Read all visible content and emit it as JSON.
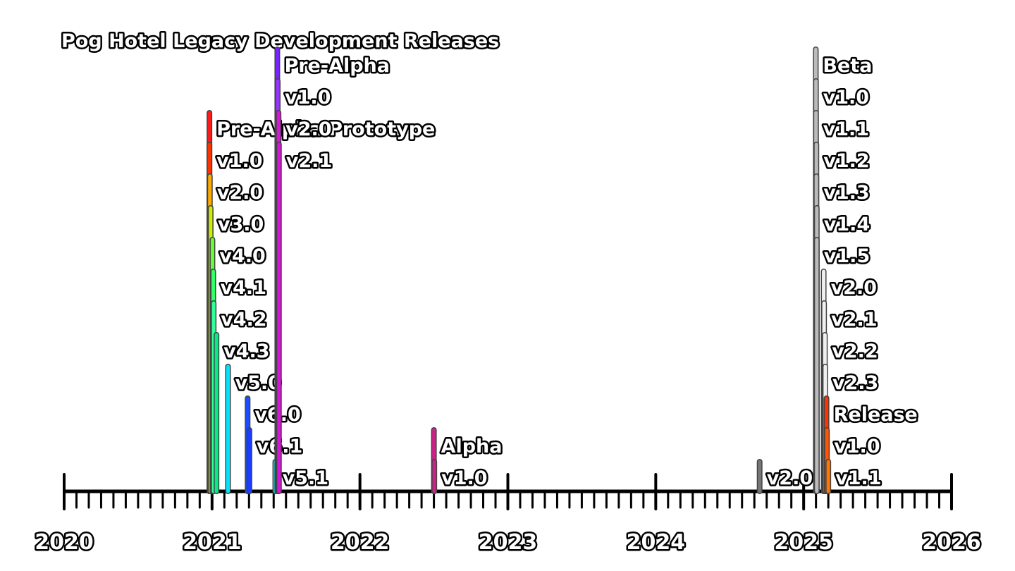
{
  "chart_data": {
    "type": "timeline",
    "title": "Pog Hotel Legacy Development Releases",
    "x_axis": {
      "range": [
        "2020-01",
        "2026-01"
      ],
      "tick_labels": [
        "2020",
        "2021",
        "2022",
        "2023",
        "2024",
        "2025",
        "2026"
      ],
      "minor_ticks": "monthly"
    },
    "events": [
      {
        "date": "2020-12-25",
        "label": "Pre-Alpha Prototype",
        "color": "#ff1a1a"
      },
      {
        "date": "2020-12-25",
        "label": "v1.0",
        "color": "#ff3300"
      },
      {
        "date": "2020-12-26",
        "label": "v2.0",
        "color": "#ffaa00"
      },
      {
        "date": "2020-12-28",
        "label": "v3.0",
        "color": "#ccee00"
      },
      {
        "date": "2021-01-02",
        "label": "v4.0",
        "color": "#66ff33"
      },
      {
        "date": "2021-01-04",
        "label": "v4.1",
        "color": "#33ff66"
      },
      {
        "date": "2021-01-05",
        "label": "v4.2",
        "color": "#33ff99"
      },
      {
        "date": "2021-01-12",
        "label": "v4.3",
        "color": "#00ee88"
      },
      {
        "date": "2021-02-10",
        "label": "v5.0",
        "color": "#00e5ff"
      },
      {
        "date": "2021-03-28",
        "label": "v6.0",
        "color": "#1a4dff"
      },
      {
        "date": "2021-04-02",
        "label": "v6.1",
        "color": "#1a3dff"
      },
      {
        "date": "2021-06-05",
        "label": "v5.1",
        "color": "#00e5ff"
      },
      {
        "date": "2021-06-10",
        "label": "Pre-Alpha",
        "color": "#7722ff"
      },
      {
        "date": "2021-06-11",
        "label": "v1.0",
        "color": "#9933ff"
      },
      {
        "date": "2021-06-13",
        "label": "v2.0",
        "color": "#dd11dd"
      },
      {
        "date": "2021-06-14",
        "label": "v2.1",
        "color": "#dd11dd"
      },
      {
        "date": "2022-07-01",
        "label": "Alpha",
        "color": "#cc2288"
      },
      {
        "date": "2022-07-02",
        "label": "v1.0",
        "color": "#cc2288"
      },
      {
        "date": "2024-09-14",
        "label": "v2.0",
        "color": "#777777"
      },
      {
        "date": "2025-01-31",
        "label": "Beta",
        "color": "#bbbbbb"
      },
      {
        "date": "2025-02-01",
        "label": "v1.0",
        "color": "#bbbbbb"
      },
      {
        "date": "2025-02-01",
        "label": "v1.1",
        "color": "#bbbbbb"
      },
      {
        "date": "2025-02-02",
        "label": "v1.2",
        "color": "#bbbbbb"
      },
      {
        "date": "2025-02-02",
        "label": "v1.3",
        "color": "#bbbbbb"
      },
      {
        "date": "2025-02-03",
        "label": "v1.4",
        "color": "#bbbbbb"
      },
      {
        "date": "2025-02-03",
        "label": "v1.5",
        "color": "#bbbbbb"
      },
      {
        "date": "2025-02-20",
        "label": "v2.0",
        "color": "#f0f0f0"
      },
      {
        "date": "2025-02-21",
        "label": "v2.1",
        "color": "#f0f0f0"
      },
      {
        "date": "2025-02-23",
        "label": "v2.2",
        "color": "#f0f0f0"
      },
      {
        "date": "2025-02-24",
        "label": "v2.3",
        "color": "#f0f0f0"
      },
      {
        "date": "2025-02-27",
        "label": "Release",
        "color": "#ff3300"
      },
      {
        "date": "2025-02-28",
        "label": "v1.0",
        "color": "#ff5500"
      },
      {
        "date": "2025-03-01",
        "label": "v1.1",
        "color": "#ff7700"
      }
    ]
  }
}
